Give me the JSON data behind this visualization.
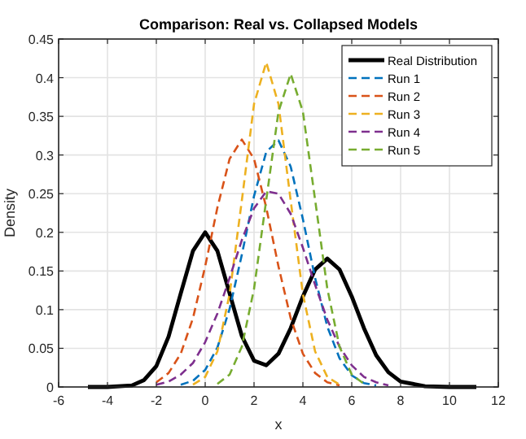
{
  "chart_data": {
    "type": "line",
    "title": "Comparison: Real vs. Collapsed Models",
    "xlabel": "x",
    "ylabel": "Density",
    "x": [
      -4.8,
      -4,
      -3,
      -2.5,
      -2,
      -1.5,
      -1,
      -0.5,
      0,
      0.5,
      1,
      1.5,
      2,
      2.5,
      3,
      3.5,
      4,
      4.5,
      5,
      5.5,
      6,
      6.5,
      7,
      7.5,
      8,
      9,
      10,
      11.1
    ],
    "series": [
      {
        "name": "Real Distribution",
        "color": "#000000",
        "line_style": "solid",
        "values": [
          0,
          0,
          0.002,
          0.009,
          0.027,
          0.065,
          0.121,
          0.176,
          0.2,
          0.176,
          0.121,
          0.066,
          0.034,
          0.028,
          0.043,
          0.076,
          0.117,
          0.152,
          0.166,
          0.152,
          0.117,
          0.076,
          0.041,
          0.019,
          0.007,
          0.001,
          0,
          0
        ]
      },
      {
        "name": "Run 1",
        "color": "#0072bd",
        "line_style": "dashed",
        "x": [
          -1,
          -0.5,
          0,
          0.5,
          1,
          1.5,
          2,
          2.5,
          3,
          3.5,
          4,
          4.5,
          5,
          5.5,
          6,
          6.5,
          7
        ],
        "values": [
          0.003,
          0.008,
          0.022,
          0.051,
          0.101,
          0.171,
          0.247,
          0.304,
          0.319,
          0.285,
          0.217,
          0.141,
          0.078,
          0.037,
          0.015,
          0.005,
          0.002
        ]
      },
      {
        "name": "Run 2",
        "color": "#d95319",
        "line_style": "dashed",
        "x": [
          -2,
          -1.5,
          -1,
          -0.5,
          0,
          0.5,
          1,
          1.5,
          2,
          2.5,
          3,
          3.5,
          4,
          4.5,
          5,
          5.5
        ],
        "values": [
          0.006,
          0.018,
          0.043,
          0.089,
          0.156,
          0.232,
          0.295,
          0.32,
          0.295,
          0.232,
          0.156,
          0.089,
          0.043,
          0.018,
          0.006,
          0.002
        ]
      },
      {
        "name": "Run 3",
        "color": "#edb120",
        "line_style": "dashed",
        "x": [
          -0.5,
          0,
          0.5,
          1,
          1.5,
          2,
          2.5,
          3,
          3.5,
          4,
          4.5,
          5,
          5.5
        ],
        "values": [
          0.003,
          0.013,
          0.046,
          0.12,
          0.241,
          0.366,
          0.42,
          0.366,
          0.241,
          0.12,
          0.046,
          0.013,
          0.003
        ]
      },
      {
        "name": "Run 4",
        "color": "#7e2f8e",
        "line_style": "dashed",
        "x": [
          -2,
          -1.5,
          -1,
          -0.5,
          0,
          0.5,
          1,
          1.5,
          2,
          2.5,
          3,
          3.5,
          4,
          4.5,
          5,
          5.5,
          6,
          6.5,
          7,
          7.5
        ],
        "values": [
          0.003,
          0.007,
          0.016,
          0.031,
          0.058,
          0.095,
          0.141,
          0.19,
          0.231,
          0.253,
          0.25,
          0.224,
          0.18,
          0.132,
          0.087,
          0.052,
          0.028,
          0.013,
          0.006,
          0.002
        ]
      },
      {
        "name": "Run 5",
        "color": "#77ac30",
        "line_style": "dashed",
        "x": [
          0.5,
          1,
          1.5,
          2,
          2.5,
          3,
          3.5,
          4,
          4.5,
          5,
          5.5,
          6,
          6.5
        ],
        "values": [
          0.004,
          0.016,
          0.052,
          0.127,
          0.242,
          0.356,
          0.405,
          0.356,
          0.242,
          0.127,
          0.052,
          0.016,
          0.004
        ]
      }
    ],
    "xlim": [
      -6,
      12
    ],
    "xticks": [
      -6,
      -4,
      -2,
      0,
      2,
      4,
      6,
      8,
      10,
      12
    ],
    "ylim": [
      0,
      0.45
    ],
    "yticks": [
      0,
      0.05,
      0.1,
      0.15,
      0.2,
      0.25,
      0.3,
      0.35,
      0.4,
      0.45
    ],
    "grid": true,
    "legend": "top right"
  }
}
